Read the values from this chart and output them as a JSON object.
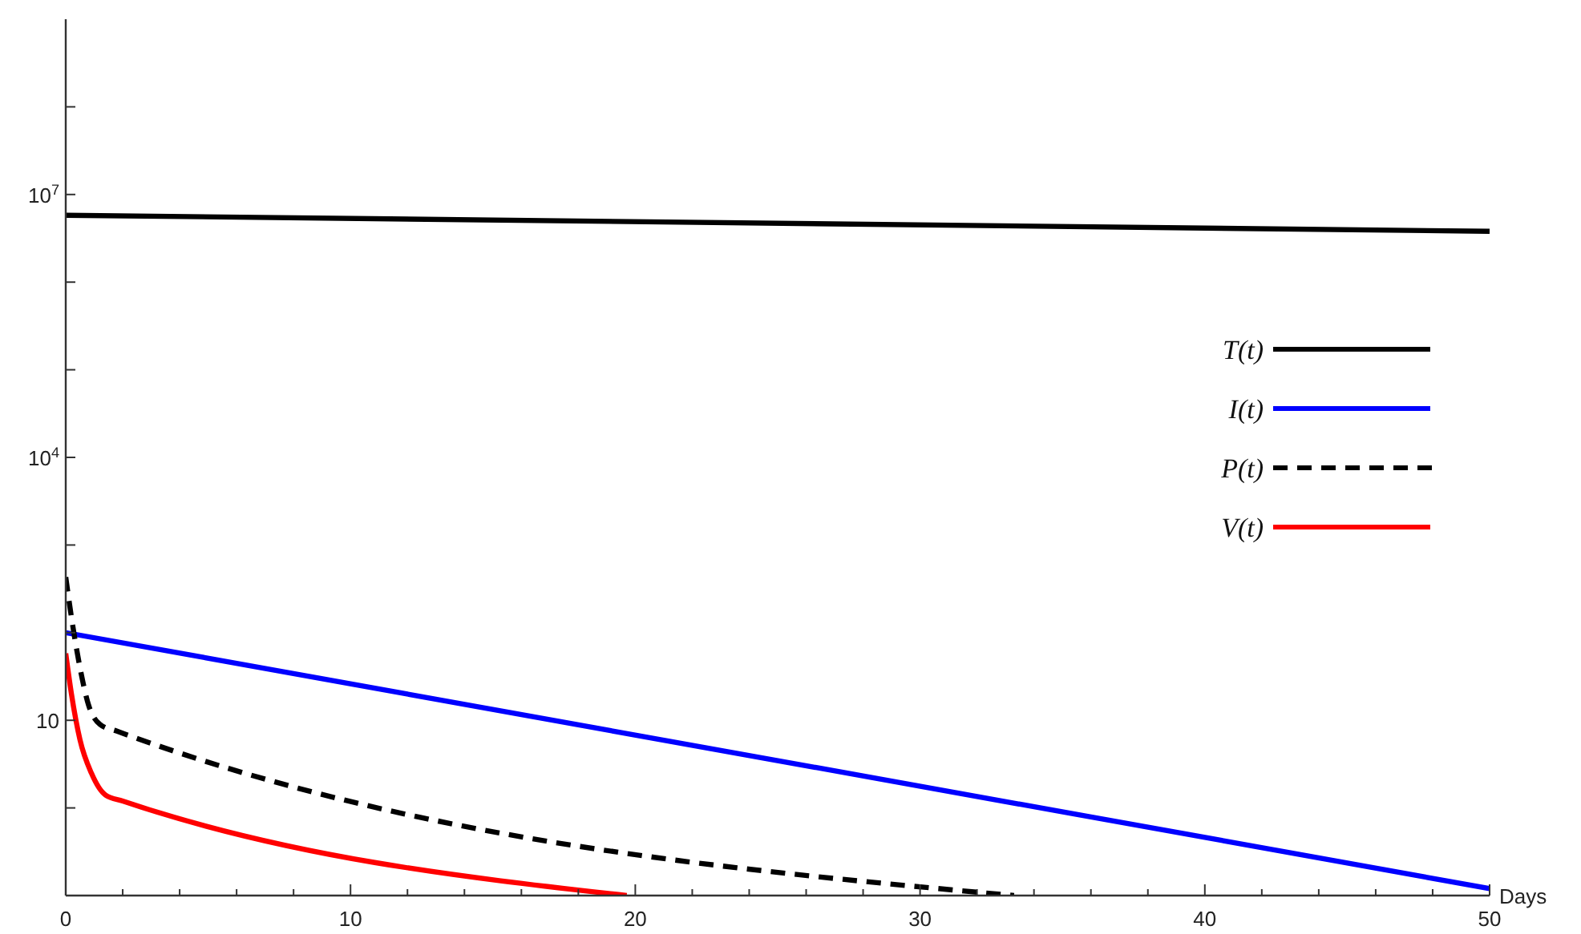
{
  "chart_data": {
    "type": "line",
    "xlabel": "Days",
    "log": "y",
    "xlim": [
      0,
      50
    ],
    "ylim": [
      0.1,
      1000000000
    ],
    "xticks": [
      0,
      {
        "value": 2,
        "label": null
      },
      {
        "value": 4,
        "label": null
      },
      {
        "value": 6,
        "label": null
      },
      {
        "value": 8,
        "label": null
      },
      10,
      {
        "value": 12,
        "label": null
      },
      {
        "value": 14,
        "label": null
      },
      {
        "value": 16,
        "label": null
      },
      {
        "value": 18,
        "label": null
      },
      20,
      {
        "value": 22,
        "label": null
      },
      {
        "value": 24,
        "label": null
      },
      {
        "value": 26,
        "label": null
      },
      {
        "value": 28,
        "label": null
      },
      30,
      {
        "value": 32,
        "label": null
      },
      {
        "value": 34,
        "label": null
      },
      {
        "value": 36,
        "label": null
      },
      {
        "value": 38,
        "label": null
      },
      40,
      {
        "value": 42,
        "label": null
      },
      {
        "value": 44,
        "label": null
      },
      {
        "value": 46,
        "label": null
      },
      {
        "value": 48,
        "label": null
      },
      50
    ],
    "yticks": [
      {
        "value": 1,
        "label": null
      },
      10,
      {
        "value": 100,
        "label": null
      },
      {
        "value": 1000,
        "label": null
      },
      {
        "value": 10000,
        "label": "10$^{4}$"
      },
      {
        "value": 100000,
        "label": null
      },
      {
        "value": 1000000,
        "label": null
      },
      {
        "value": 10000000,
        "label": "10$^{7}$"
      },
      {
        "value": 100000000,
        "label": null
      }
    ],
    "legend": "right",
    "grid": false,
    "series": [
      {
        "name": "T(t)",
        "color": "#000000",
        "line_style": "solid",
        "x": [
          0,
          50
        ],
        "values": [
          5800000,
          3800000
        ]
      },
      {
        "name": "I(t)",
        "color": "#0000ff",
        "line_style": "solid",
        "x": [
          0,
          50
        ],
        "values": [
          100,
          0.12
        ]
      },
      {
        "name": "P(t)",
        "color": "#000000",
        "line_style": "dashed",
        "x": [
          0,
          0.2,
          0.5,
          0.8,
          1.2,
          1.8,
          33.3
        ],
        "values": [
          430,
          150,
          40,
          15,
          9,
          7.5,
          0.1
        ]
      },
      {
        "name": "V(t)",
        "color": "#ff0000",
        "line_style": "solid",
        "x": [
          0,
          0.2,
          0.5,
          0.9,
          1.4,
          2,
          19.7
        ],
        "values": [
          58,
          20,
          6,
          2.5,
          1.4,
          1.2,
          0.1
        ]
      }
    ]
  }
}
